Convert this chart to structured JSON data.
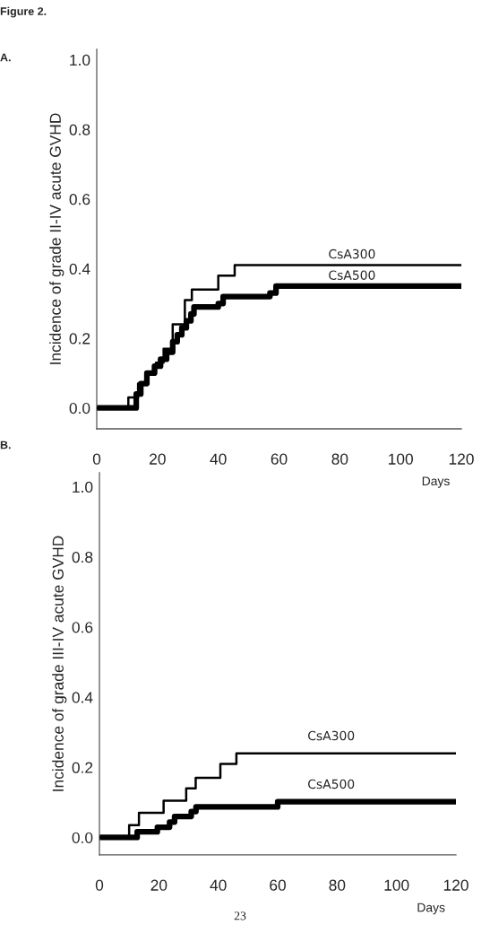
{
  "chart_data": [
    {
      "type": "step",
      "xlabel": "Days",
      "ylabel": "Incidence of grade II-IV acute GVHD",
      "annotations": [
        "Figure 2.",
        "A."
      ],
      "xlim": [
        0,
        120
      ],
      "xticks": [
        0,
        20,
        40,
        60,
        80,
        100,
        120
      ],
      "ylim": [
        -0.06,
        1.03
      ],
      "yticks": [
        {
          "value": 0,
          "label": "0.0"
        },
        {
          "value": 0.2,
          "label": "0.2"
        },
        {
          "value": 0.4,
          "label": "0.4"
        },
        {
          "value": 0.6,
          "label": "0.6"
        },
        {
          "value": 0.8,
          "label": "0.8"
        },
        {
          "value": 1.0,
          "label": "1.0"
        }
      ],
      "grid": false,
      "legend": false,
      "series": [
        {
          "name": "CsA300",
          "color": "#000000",
          "x": [
            0,
            10.4,
            13.6,
            16.7,
            19.5,
            22,
            25,
            29,
            31.3,
            40,
            45.4,
            120
          ],
          "values": [
            0,
            0.03,
            0.07,
            0.1,
            0.13,
            0.17,
            0.24,
            0.31,
            0.34,
            0.38,
            0.41,
            0.41
          ]
        },
        {
          "name": "CsA500",
          "color": "#000000",
          "x": [
            0,
            13,
            14.5,
            16.5,
            19,
            21,
            23,
            25,
            26.5,
            28,
            29.5,
            31,
            32,
            40,
            41.6,
            57,
            59,
            120
          ],
          "values": [
            0,
            0.04,
            0.07,
            0.1,
            0.12,
            0.14,
            0.16,
            0.19,
            0.21,
            0.23,
            0.25,
            0.27,
            0.29,
            0.3,
            0.32,
            0.33,
            0.35,
            0.35
          ]
        }
      ]
    },
    {
      "type": "step",
      "xlabel": "Days",
      "ylabel": "Incidence of grade III-IV acute GVHD",
      "annotations": [
        "B.",
        "23"
      ],
      "xlim": [
        0,
        120
      ],
      "xticks": [
        0,
        20,
        40,
        60,
        80,
        100,
        120
      ],
      "ylim": [
        -0.05,
        1.04
      ],
      "yticks": [
        {
          "value": 0,
          "label": "0.0"
        },
        {
          "value": 0.2,
          "label": "0.2"
        },
        {
          "value": 0.4,
          "label": "0.4"
        },
        {
          "value": 0.6,
          "label": "0.6"
        },
        {
          "value": 0.8,
          "label": "0.8"
        },
        {
          "value": 1.0,
          "label": "1.0"
        }
      ],
      "grid": false,
      "legend": false,
      "series": [
        {
          "name": "CsA300",
          "color": "#000000",
          "x": [
            0,
            10.0,
            13.3,
            21.6,
            29.2,
            32.4,
            40.7,
            46.1,
            120
          ],
          "values": [
            0,
            0.035,
            0.07,
            0.105,
            0.14,
            0.17,
            0.21,
            0.24,
            0.24
          ]
        },
        {
          "name": "CsA500",
          "color": "#000000",
          "x": [
            0,
            12.7,
            19.5,
            23.6,
            25.3,
            30.9,
            32.5,
            60,
            120
          ],
          "values": [
            0,
            0.016,
            0.029,
            0.044,
            0.06,
            0.074,
            0.087,
            0.102,
            0.102
          ]
        }
      ]
    }
  ]
}
